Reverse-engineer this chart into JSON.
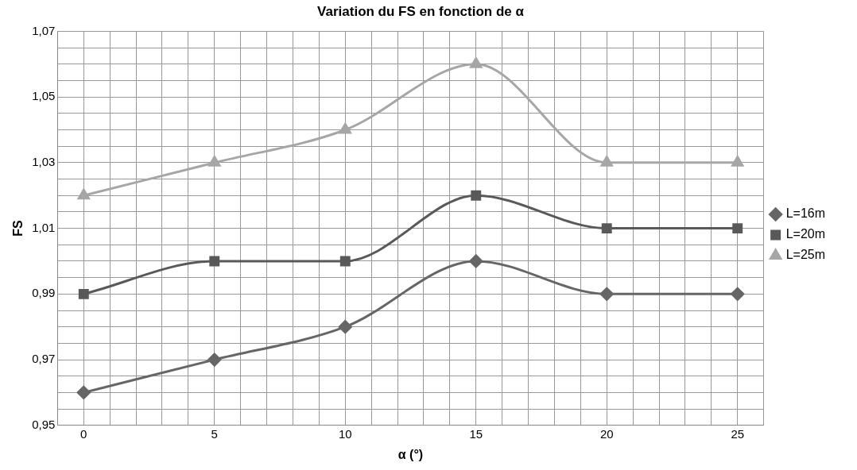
{
  "chart_data": {
    "type": "line",
    "title": "Variation du FS en fonction de α",
    "xlabel": "α (°)",
    "ylabel": "FS",
    "x": [
      0,
      5,
      10,
      15,
      20,
      25
    ],
    "series": [
      {
        "name": "L=16m",
        "color": "#666666",
        "marker": "diamond",
        "values": [
          0.96,
          0.97,
          0.98,
          1.0,
          0.99,
          0.99
        ]
      },
      {
        "name": "L=20m",
        "color": "#595959",
        "marker": "square",
        "values": [
          0.99,
          1.0,
          1.0,
          1.02,
          1.01,
          1.01
        ]
      },
      {
        "name": "L=25m",
        "color": "#a6a6a6",
        "marker": "triangle",
        "values": [
          1.02,
          1.03,
          1.04,
          1.06,
          1.03,
          1.03
        ]
      }
    ],
    "xlim": [
      -1,
      26
    ],
    "xticks": [
      {
        "value": -1,
        "label": null
      },
      0,
      {
        "value": 1,
        "label": null
      },
      {
        "value": 2,
        "label": null
      },
      {
        "value": 3,
        "label": null
      },
      {
        "value": 4,
        "label": null
      },
      5,
      {
        "value": 6,
        "label": null
      },
      {
        "value": 7,
        "label": null
      },
      {
        "value": 8,
        "label": null
      },
      {
        "value": 9,
        "label": null
      },
      10,
      {
        "value": 11,
        "label": null
      },
      {
        "value": 12,
        "label": null
      },
      {
        "value": 13,
        "label": null
      },
      {
        "value": 14,
        "label": null
      },
      15,
      {
        "value": 16,
        "label": null
      },
      {
        "value": 17,
        "label": null
      },
      {
        "value": 18,
        "label": null
      },
      {
        "value": 19,
        "label": null
      },
      20,
      {
        "value": 21,
        "label": null
      },
      {
        "value": 22,
        "label": null
      },
      {
        "value": 23,
        "label": null
      },
      {
        "value": 24,
        "label": null
      },
      25,
      {
        "value": 26,
        "label": null
      }
    ],
    "ylim": [
      0.95,
      1.07
    ],
    "yticks": [
      {
        "value": 0.95,
        "label": "0,95"
      },
      {
        "value": 0.955,
        "label": null
      },
      {
        "value": 0.96,
        "label": null
      },
      {
        "value": 0.965,
        "label": null
      },
      {
        "value": 0.97,
        "label": "0,97"
      },
      {
        "value": 0.975,
        "label": null
      },
      {
        "value": 0.98,
        "label": null
      },
      {
        "value": 0.985,
        "label": null
      },
      {
        "value": 0.99,
        "label": "0,99"
      },
      {
        "value": 0.995,
        "label": null
      },
      {
        "value": 1.0,
        "label": null
      },
      {
        "value": 1.005,
        "label": null
      },
      {
        "value": 1.01,
        "label": "1,01"
      },
      {
        "value": 1.015,
        "label": null
      },
      {
        "value": 1.02,
        "label": null
      },
      {
        "value": 1.025,
        "label": null
      },
      {
        "value": 1.03,
        "label": "1,03"
      },
      {
        "value": 1.035,
        "label": null
      },
      {
        "value": 1.04,
        "label": null
      },
      {
        "value": 1.045,
        "label": null
      },
      {
        "value": 1.05,
        "label": "1,05"
      },
      {
        "value": 1.055,
        "label": null
      },
      {
        "value": 1.06,
        "label": null
      },
      {
        "value": 1.065,
        "label": null
      },
      {
        "value": 1.07,
        "label": "1,07"
      }
    ],
    "grid": true,
    "legend": "right",
    "line_style": "solid"
  }
}
